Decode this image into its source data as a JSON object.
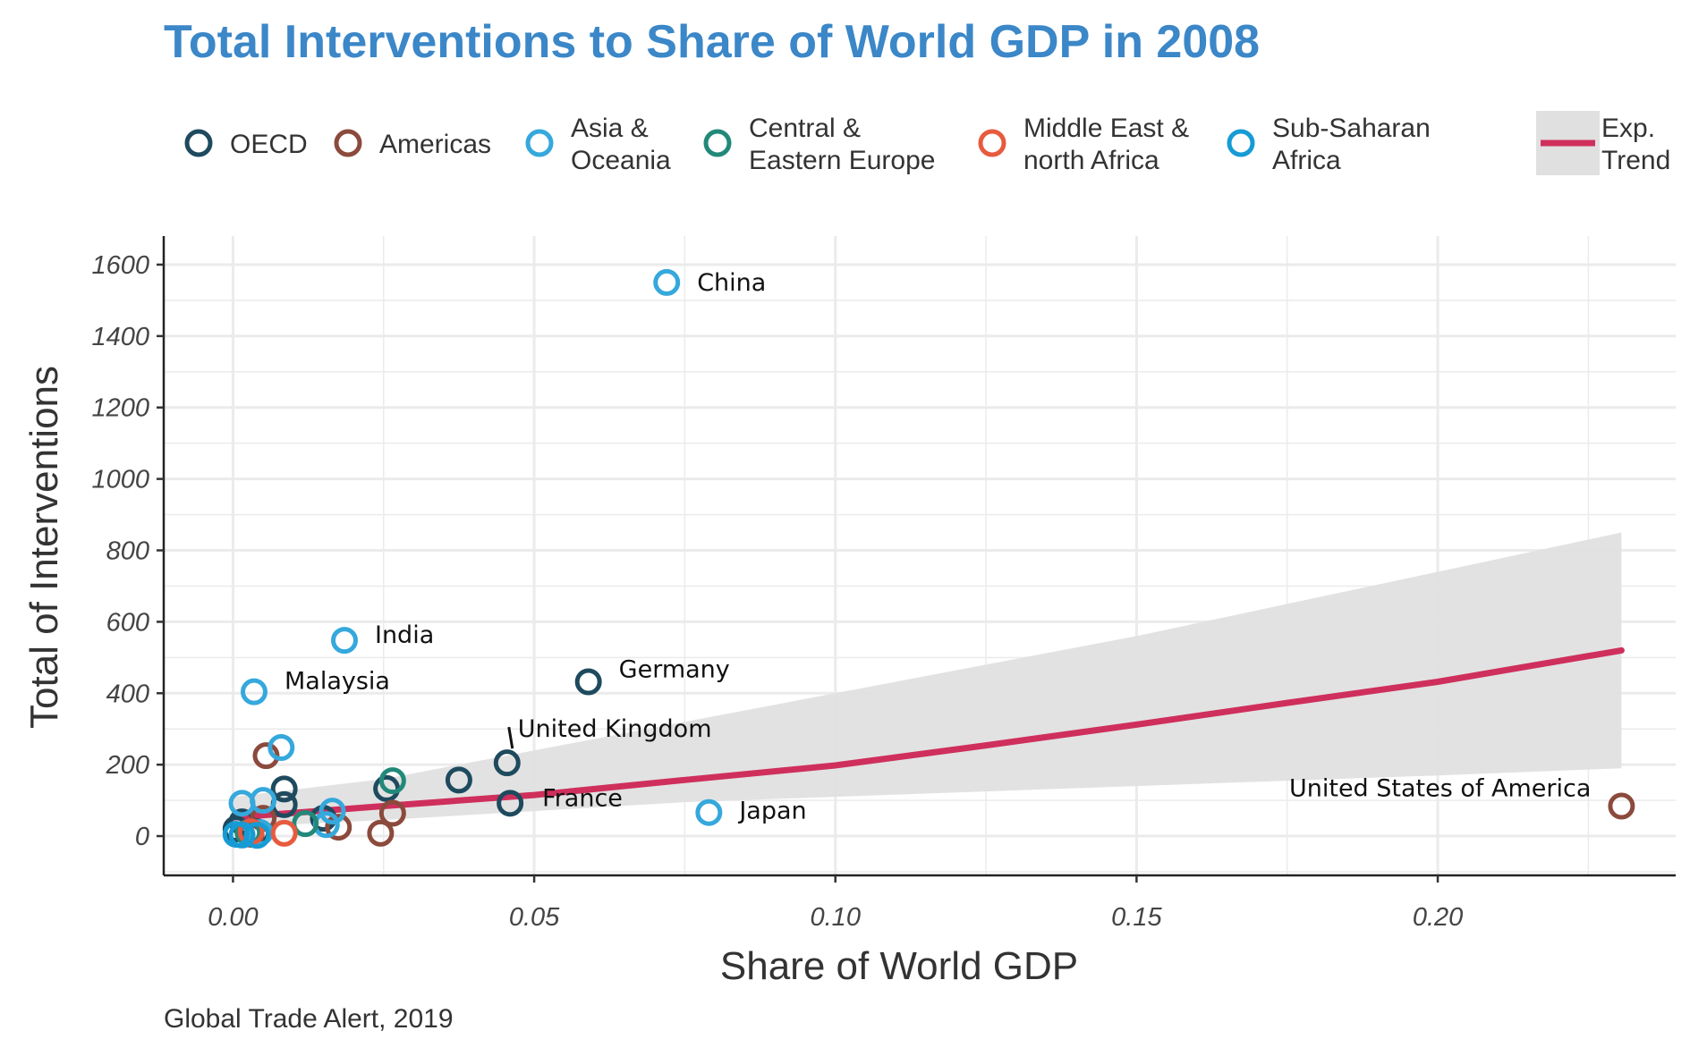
{
  "chart_data": {
    "type": "scatter",
    "title": "Total Interventions to Share of World GDP in 2008",
    "xlabel": "Share of World GDP",
    "ylabel": "Total of Interventions",
    "caption": "Global Trade Alert, 2019",
    "xlim": [
      -0.0115,
      0.2395
    ],
    "ylim": [
      -110,
      1680
    ],
    "xticks": [
      0.0,
      0.05,
      0.1,
      0.15,
      0.2
    ],
    "xtick_labels": [
      "0.00",
      "0.05",
      "0.10",
      "0.15",
      "0.20"
    ],
    "yticks": [
      0,
      200,
      400,
      600,
      800,
      1000,
      1200,
      1400,
      1600
    ],
    "ytick_labels": [
      "0",
      "200",
      "400",
      "600",
      "800",
      "1000",
      "1200",
      "1400",
      "1600"
    ],
    "grid": true,
    "legend_position": "top",
    "colors": {
      "title": "#3b87c8",
      "trend": "#cf2f5c",
      "band": "#e0e0e0",
      "grid": "#ebebeb",
      "axis": "#222222"
    },
    "series": [
      {
        "name": "OECD",
        "color": "#1e4a5e",
        "points": [
          {
            "x": 0.059,
            "y": 432,
            "label": "Germany"
          },
          {
            "x": 0.0455,
            "y": 205,
            "label": "United Kingdom"
          },
          {
            "x": 0.046,
            "y": 92,
            "label": "France"
          },
          {
            "x": 0.0375,
            "y": 157
          },
          {
            "x": 0.0255,
            "y": 133
          },
          {
            "x": 0.0085,
            "y": 132
          },
          {
            "x": 0.0085,
            "y": 88
          },
          {
            "x": 0.015,
            "y": 50
          },
          {
            "x": 0.0015,
            "y": 40
          },
          {
            "x": 0.0005,
            "y": 20
          },
          {
            "x": 0.004,
            "y": 12
          }
        ]
      },
      {
        "name": "Americas",
        "color": "#8b4a3c",
        "points": [
          {
            "x": 0.2305,
            "y": 84,
            "label": "United States of America"
          },
          {
            "x": 0.0055,
            "y": 225
          },
          {
            "x": 0.0265,
            "y": 64
          },
          {
            "x": 0.0175,
            "y": 25
          },
          {
            "x": 0.0245,
            "y": 8
          },
          {
            "x": 0.005,
            "y": 50
          },
          {
            "x": 0.003,
            "y": 5
          }
        ]
      },
      {
        "name": "Asia & Oceania",
        "color": "#35a8dc",
        "points": [
          {
            "x": 0.072,
            "y": 1550,
            "label": "China"
          },
          {
            "x": 0.0185,
            "y": 548,
            "label": "India"
          },
          {
            "x": 0.0035,
            "y": 404,
            "label": "Malaysia"
          },
          {
            "x": 0.079,
            "y": 66,
            "label": "Japan"
          },
          {
            "x": 0.008,
            "y": 248
          },
          {
            "x": 0.0015,
            "y": 92
          },
          {
            "x": 0.0165,
            "y": 70
          },
          {
            "x": 0.0155,
            "y": 32
          },
          {
            "x": 0.005,
            "y": 100
          },
          {
            "x": 0.0045,
            "y": 10
          }
        ]
      },
      {
        "name": "Central & Eastern Europe",
        "color": "#22897a",
        "points": [
          {
            "x": 0.0265,
            "y": 155
          },
          {
            "x": 0.012,
            "y": 35
          },
          {
            "x": 0.0025,
            "y": 10
          }
        ]
      },
      {
        "name": "Middle East & north Africa",
        "color": "#e85a3e",
        "points": [
          {
            "x": 0.0085,
            "y": 8
          },
          {
            "x": 0.003,
            "y": 12
          }
        ]
      },
      {
        "name": "Sub-Saharan Africa",
        "color": "#169bd5",
        "points": [
          {
            "x": 0.0005,
            "y": 5
          },
          {
            "x": 0.0015,
            "y": 3
          },
          {
            "x": 0.004,
            "y": 2
          }
        ]
      }
    ],
    "trend": {
      "name": "Exp. Trend",
      "x": [
        0.0,
        0.025,
        0.05,
        0.075,
        0.1,
        0.125,
        0.15,
        0.175,
        0.2,
        0.2305
      ],
      "y": [
        52,
        84,
        115,
        157,
        198,
        254,
        312,
        373,
        432,
        520
      ],
      "lower": [
        25,
        45,
        70,
        95,
        110,
        125,
        140,
        155,
        170,
        190
      ],
      "upper": [
        110,
        160,
        240,
        320,
        400,
        480,
        560,
        650,
        740,
        850
      ]
    }
  }
}
